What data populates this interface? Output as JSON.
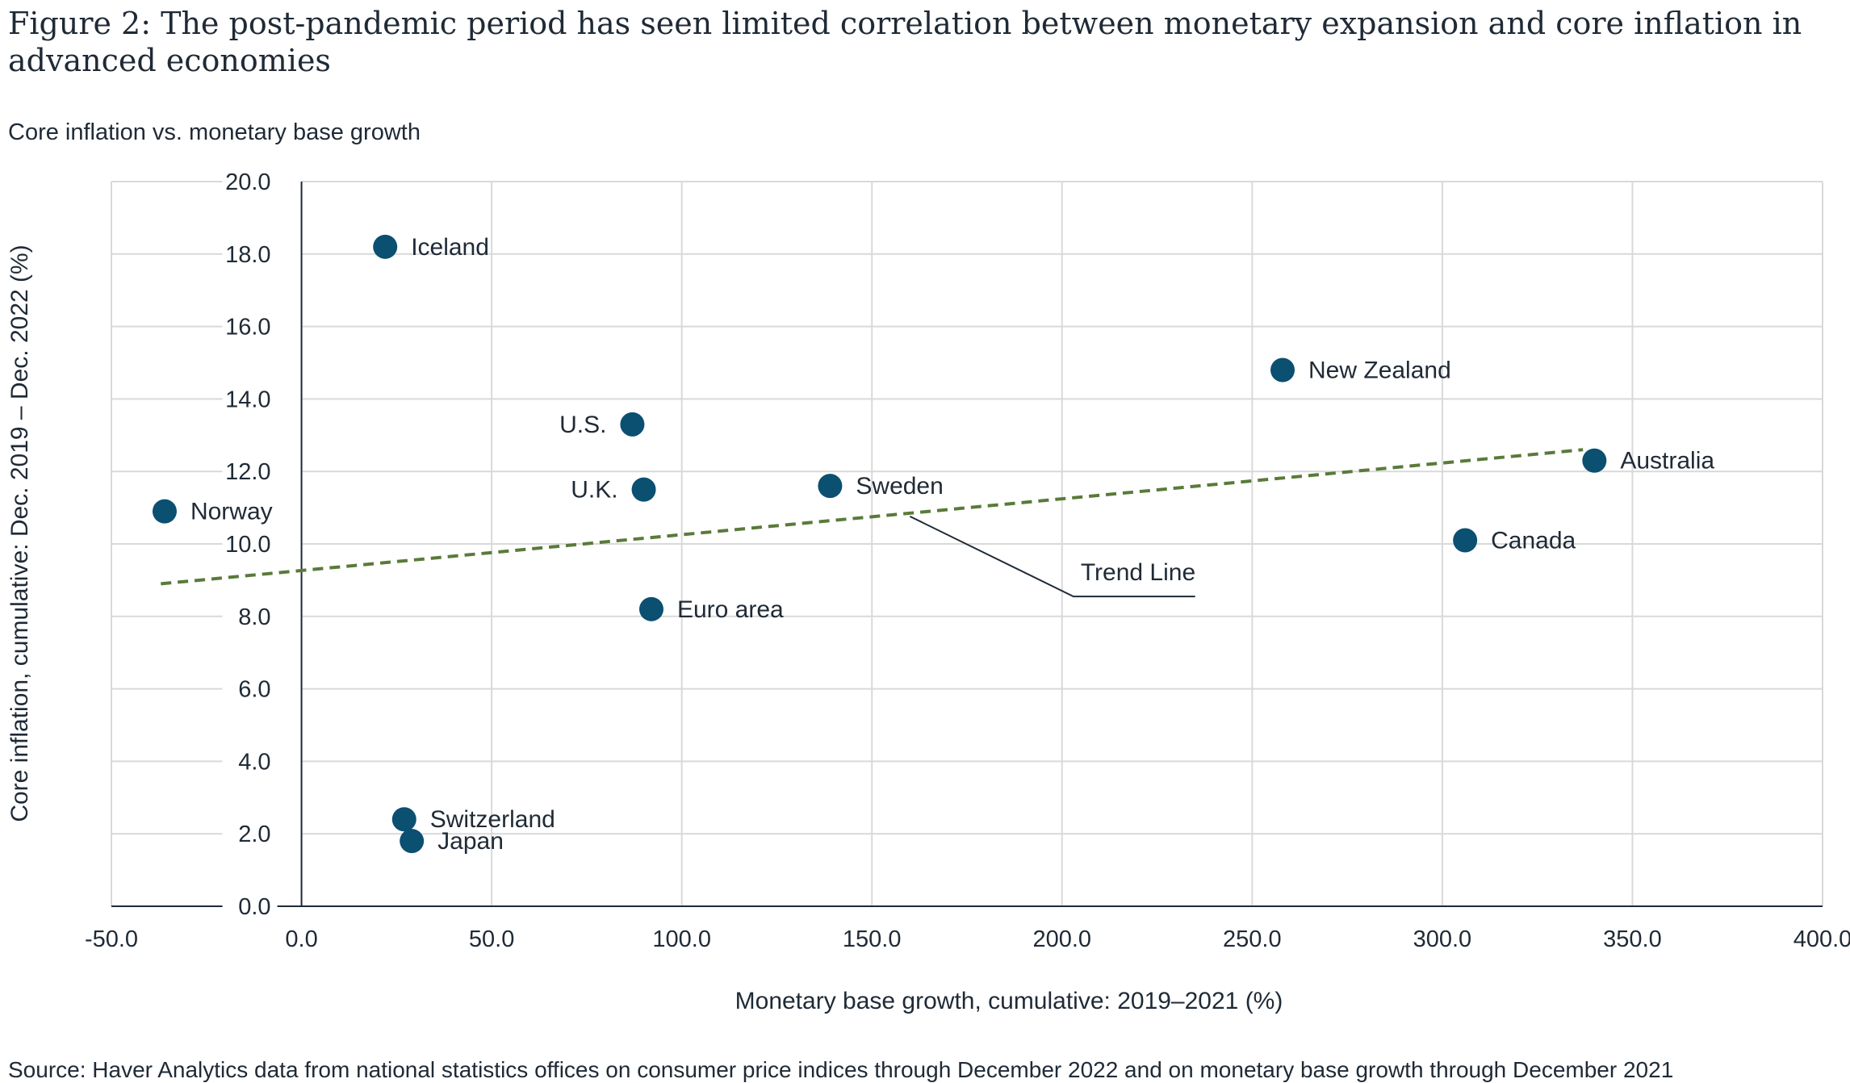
{
  "figure": {
    "title": "Figure 2: The post-pandemic period has seen limited correlation between monetary expansion and core inflation in advanced economies",
    "subtitle": "Core inflation vs. monetary base growth",
    "source": "Source: Haver Analytics data from national statistics offices on consumer price indices through December 2022 and on monetary base growth through December 2021"
  },
  "chart_data": {
    "type": "scatter",
    "xlabel": "Monetary base growth, cumulative: 2019–2021 (%)",
    "ylabel": "Core inflation, cumulative: Dec. 2019 – Dec. 2022 (%)",
    "xlim": [
      -50,
      400
    ],
    "ylim": [
      0,
      20
    ],
    "x_ticks": [
      "-50.0",
      "0.0",
      "50.0",
      "100.0",
      "150.0",
      "200.0",
      "250.0",
      "300.0",
      "350.0",
      "400.0"
    ],
    "y_ticks": [
      "0.0",
      "2.0",
      "4.0",
      "6.0",
      "8.0",
      "10.0",
      "12.0",
      "14.0",
      "16.0",
      "18.0",
      "20.0"
    ],
    "grid": true,
    "point_color": "#0b4f71",
    "trend_color": "#5a7a3a",
    "points": [
      {
        "label": "Iceland",
        "x": 22,
        "y": 18.2
      },
      {
        "label": "New Zealand",
        "x": 258,
        "y": 14.8
      },
      {
        "label": "U.S.",
        "x": 87,
        "y": 13.3
      },
      {
        "label": "Australia",
        "x": 340,
        "y": 12.3
      },
      {
        "label": "Sweden",
        "x": 139,
        "y": 11.6
      },
      {
        "label": "U.K.",
        "x": 90,
        "y": 11.5
      },
      {
        "label": "Norway",
        "x": -36,
        "y": 10.9
      },
      {
        "label": "Canada",
        "x": 306,
        "y": 10.1
      },
      {
        "label": "Euro area",
        "x": 92,
        "y": 8.2
      },
      {
        "label": "Switzerland",
        "x": 27,
        "y": 2.4
      },
      {
        "label": "Japan",
        "x": 29,
        "y": 1.8
      }
    ],
    "trend_line": {
      "label": "Trend Line",
      "x0": -37,
      "y0": 8.9,
      "x1": 337,
      "y1": 12.6
    }
  }
}
